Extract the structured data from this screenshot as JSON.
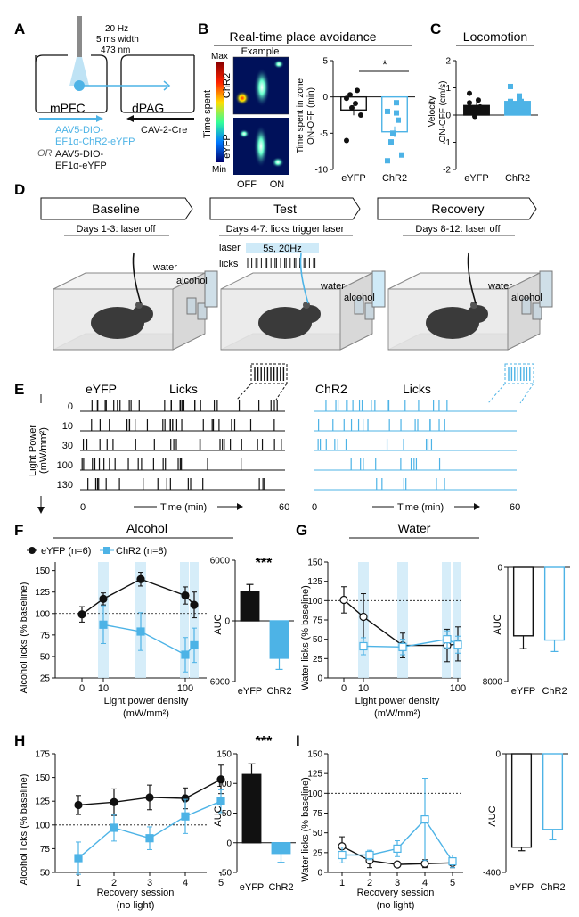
{
  "colors": {
    "black": "#111111",
    "blue": "#4db3e6",
    "lightblue": "#cfeaf8",
    "grey": "#8a8a8a"
  },
  "panel_labels": [
    "A",
    "B",
    "C",
    "D",
    "E",
    "F",
    "G",
    "H",
    "I"
  ],
  "A": {
    "stim": [
      "20 Hz",
      "5 ms width",
      "473 nm"
    ],
    "mpfc": "mPFC",
    "dpag": "dPAG",
    "virus_blue": [
      "AAV5-DIO-",
      "EF1α-ChR2-eYFP"
    ],
    "or": "OR",
    "virus_black": [
      "AAV5-DIO-",
      "EF1α-eYFP"
    ],
    "cav": "CAV-2-Cre"
  },
  "B": {
    "title": "Real-time place avoidance",
    "example": "Example",
    "colorbar_max": "Max",
    "colorbar_min": "Min",
    "colorbar_label": "Time spent",
    "row_chr2": "ChR2",
    "row_eyfp": "eYFP",
    "off": "OFF",
    "on": "ON",
    "sig": "*",
    "ylabel": [
      "Time spent in zone",
      "ON-OFF (min)"
    ]
  },
  "C": {
    "title": "Locomotion",
    "ylabel": [
      "Velocity",
      "ON-OFF (cm/s)"
    ]
  },
  "D": {
    "stages": [
      {
        "title": "Baseline",
        "sub": "Days 1-3: laser off"
      },
      {
        "title": "Test",
        "sub": "Days 4-7: licks trigger laser"
      },
      {
        "title": "Recovery",
        "sub": "Days 8-12: laser off"
      }
    ],
    "laser_label": "laser",
    "laser_value": "5s, 20Hz",
    "licks_label": "licks",
    "water": "water",
    "alcohol": "alcohol"
  },
  "E": {
    "eyfp": "eYFP",
    "chr2": "ChR2",
    "licks": "Licks",
    "ylabel": [
      "Light Power",
      "(mW/mm²)"
    ],
    "rows": [
      "0",
      "10",
      "30",
      "100",
      "130"
    ],
    "xlabel": "Time (min)",
    "x0": "0",
    "x60": "60"
  },
  "F": {
    "title": "Alcohol",
    "legend_eyfp": "eYFP (n=6)",
    "legend_chr2": "ChR2 (n=8)",
    "ylabel": "Alcohol licks (% baseline)",
    "xlabel": [
      "Light power density",
      "(mW/mm²)"
    ],
    "sig": "***",
    "auc_label": "AUC"
  },
  "G": {
    "title": "Water",
    "ylabel": "Water licks (% baseline)",
    "xlabel": [
      "Light power density",
      "(mW/mm²)"
    ],
    "auc_label": "AUC"
  },
  "H": {
    "ylabel": "Alcohol licks (% baseline)",
    "xlabel": [
      "Recovery session",
      "(no light)"
    ],
    "sig": "***",
    "auc_label": "AUC"
  },
  "I": {
    "ylabel": "Water licks (% baseline)",
    "xlabel": [
      "Recovery session",
      "(no light)"
    ],
    "auc_label": "AUC"
  },
  "chart_data": [
    {
      "id": "B",
      "type": "bar",
      "categories": [
        "eYFP",
        "ChR2"
      ],
      "values": [
        -1.8,
        -4.8
      ],
      "points": {
        "eYFP": [
          -0.2,
          -0.9,
          0.9,
          0.3,
          -1.5,
          -2.5,
          -6
        ],
        "ChR2": [
          -2,
          -2.2,
          -3.2,
          -6.2,
          -5,
          -8,
          -8.8,
          -0.8
        ]
      },
      "ylim": [
        -10,
        5
      ],
      "yticks": [
        5,
        0,
        -5,
        -10
      ]
    },
    {
      "id": "C",
      "type": "bar",
      "categories": [
        "eYFP",
        "ChR2"
      ],
      "values": [
        0.35,
        0.5
      ],
      "points": {
        "eYFP": [
          0.8,
          0.55,
          0.3,
          0.1,
          -0.05,
          0.2,
          0.45,
          0.2
        ],
        "ChR2": [
          1.05,
          0.7,
          0.5,
          0.3,
          0.2,
          0.1,
          0.5,
          0.55,
          0.35
        ]
      },
      "ylim": [
        -2,
        2
      ],
      "yticks": [
        2,
        1,
        0,
        -1,
        -2
      ]
    },
    {
      "id": "F",
      "type": "line",
      "x": [
        0,
        10,
        30,
        100,
        130
      ],
      "series": [
        {
          "name": "eYFP (n=6)",
          "values": [
            99,
            117,
            140,
            121,
            110
          ],
          "err": [
            9,
            7,
            8,
            10,
            15
          ]
        },
        {
          "name": "ChR2 (n=8)",
          "values": [
            null,
            87,
            79,
            52,
            63
          ],
          "err": [
            null,
            22,
            22,
            20,
            20
          ]
        }
      ],
      "ylim": [
        25,
        160
      ],
      "yticks": [
        25,
        50,
        75,
        100,
        125,
        150
      ]
    },
    {
      "id": "F-AUC",
      "type": "bar",
      "categories": [
        "eYFP",
        "ChR2"
      ],
      "values": [
        2900,
        -3700
      ],
      "err": [
        700,
        1100
      ],
      "ylim": [
        -6000,
        6000
      ],
      "yticks": [
        6000,
        0,
        -6000
      ]
    },
    {
      "id": "G",
      "type": "line",
      "x": [
        0,
        10,
        30,
        70,
        90
      ],
      "series": [
        {
          "name": "eYFP",
          "values": [
            101,
            79,
            42,
            42,
            44
          ],
          "err": [
            17,
            30,
            16,
            21,
            22
          ]
        },
        {
          "name": "ChR2",
          "values": [
            null,
            41,
            40,
            50,
            43
          ],
          "err": [
            null,
            11,
            10,
            11,
            11
          ]
        }
      ],
      "ylim": [
        0,
        150
      ],
      "yticks": [
        0,
        25,
        50,
        75,
        100,
        125,
        150
      ]
    },
    {
      "id": "G-AUC",
      "type": "bar",
      "categories": [
        "eYFP",
        "ChR2"
      ],
      "values": [
        -4800,
        -5100
      ],
      "err": [
        900,
        800
      ],
      "ylim": [
        -8000,
        0
      ],
      "yticks": [
        0,
        -8000
      ]
    },
    {
      "id": "H",
      "type": "line",
      "x": [
        1,
        2,
        3,
        4,
        5
      ],
      "series": [
        {
          "name": "eYFP",
          "values": [
            121,
            124,
            129,
            128,
            148
          ],
          "err": [
            10,
            14,
            13,
            11,
            15
          ]
        },
        {
          "name": "ChR2",
          "values": [
            65,
            97,
            86,
            109,
            125
          ],
          "err": [
            17,
            14,
            12,
            18,
            12
          ]
        }
      ],
      "ylim": [
        50,
        175
      ],
      "yticks": [
        50,
        75,
        100,
        125,
        150,
        175
      ]
    },
    {
      "id": "H-AUC",
      "type": "bar",
      "categories": [
        "eYFP",
        "ChR2"
      ],
      "values": [
        115,
        -18
      ],
      "err": [
        18,
        15
      ],
      "ylim": [
        -50,
        150
      ],
      "yticks": [
        150,
        100,
        50,
        0,
        -50
      ]
    },
    {
      "id": "I",
      "type": "line",
      "x": [
        1,
        2,
        3,
        4,
        5
      ],
      "series": [
        {
          "name": "eYFP",
          "values": [
            33,
            15,
            10,
            11,
            12
          ],
          "err": [
            12,
            9,
            3,
            5,
            6
          ]
        },
        {
          "name": "ChR2",
          "values": [
            22,
            22,
            30,
            67,
            14
          ],
          "err": [
            10,
            6,
            10,
            52,
            8
          ]
        }
      ],
      "ylim": [
        0,
        150
      ],
      "yticks": [
        0,
        25,
        50,
        75,
        100,
        125,
        150
      ]
    },
    {
      "id": "I-AUC",
      "type": "bar",
      "categories": [
        "eYFP",
        "ChR2"
      ],
      "values": [
        -315,
        -255
      ],
      "err": [
        12,
        35
      ],
      "ylim": [
        -400,
        0
      ],
      "yticks": [
        0,
        -400
      ]
    }
  ]
}
